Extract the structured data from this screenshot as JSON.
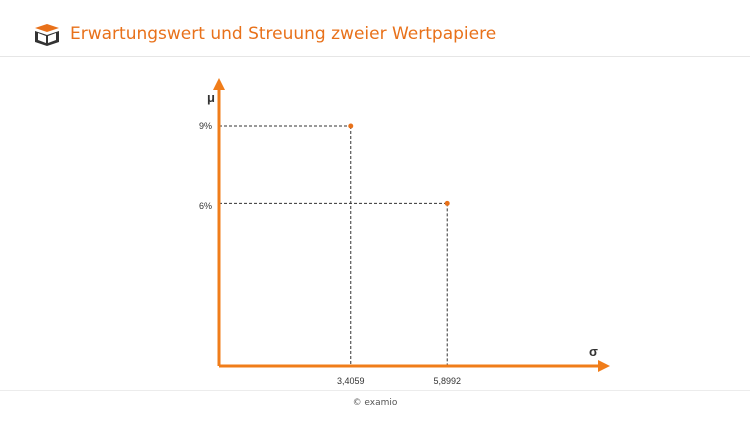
{
  "header": {
    "title": "Erwartungswert und Streuung zweier Wertpapiere",
    "logo_icon": "examio-book-icon",
    "accent_color": "#e8711a"
  },
  "footer": {
    "copyright": "© examio"
  },
  "chart_data": {
    "type": "scatter",
    "title": "",
    "xlabel": "σ",
    "ylabel": "μ",
    "x_ticks": [
      "3,4059",
      "5,8992"
    ],
    "y_ticks": [
      "9%",
      "6%"
    ],
    "points": [
      {
        "x": 3.4059,
        "y": 9
      },
      {
        "x": 5.8992,
        "y": 6.1
      }
    ],
    "xlim": [
      0,
      9.9
    ],
    "ylim": [
      0,
      10.5
    ],
    "grid": false,
    "guide_lines": "dashed",
    "axis_color": "#f07d1a",
    "point_color": "#e8711a"
  }
}
